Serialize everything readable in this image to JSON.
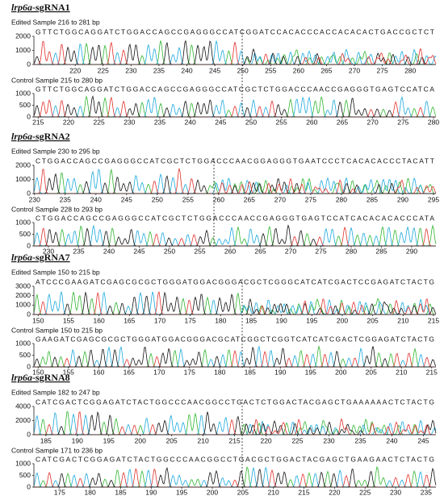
{
  "panels": [
    {
      "title": {
        "gene": "lrp6a",
        "suffix": "-sgRNA1"
      },
      "edited": {
        "label": "Edited Sample 216 to 281 bp",
        "sequence": "GTTCTGGCAGGATCTGGACCAGCCGAGGGCCATCGGATCCACACCCACCACACACTGACCGCTCT",
        "yticks": [
          0,
          1000,
          2000
        ],
        "xlim": [
          212.6,
          284.6
        ],
        "xticks": [
          220,
          225,
          230,
          235,
          240,
          245,
          250,
          255,
          260,
          265,
          270,
          275,
          280
        ]
      },
      "control": {
        "label": "Control Sample 215 to 280 bp",
        "sequence": "GTTCTGGCAGGATCTGGACCAGCCGAGGGCCATCGCTCTGGACCCAACCGAGGGTGAGTCCATCA",
        "yticks": [
          0,
          500,
          1000
        ],
        "xlim": [
          214.3,
          280.4
        ],
        "xticks": [
          215,
          220,
          225,
          230,
          235,
          240,
          245,
          250,
          255,
          260,
          265,
          270,
          275,
          280
        ]
      }
    },
    {
      "title": {
        "gene": "lrp6a",
        "suffix": "-sgRNA2"
      },
      "edited": {
        "label": "Edited Sample 230 to 295 bp",
        "sequence": "CTGGACCAGCCGAGGGCCATCGCTCTGGACCCAACGGAGGGTGAATCCCTCACACACCCTACATT",
        "yticks": [
          0,
          1000,
          2000
        ],
        "xlim": [
          229.9,
          295.4
        ],
        "xticks": [
          230,
          235,
          240,
          245,
          250,
          255,
          260,
          265,
          270,
          275,
          280,
          285,
          290,
          295
        ]
      },
      "control": {
        "label": "Control Sample 228 to 293 bp",
        "sequence": "CTGGACCAGCCGAGGGCCATCGCTCTGGACCCAACCGAGGGTGAGTCCATCACACACACCCATA",
        "yticks": [
          0,
          500,
          1000
        ],
        "xlim": [
          227.6,
          294.0
        ],
        "xticks": [
          230,
          235,
          240,
          245,
          250,
          255,
          260,
          265,
          270,
          275,
          280,
          285,
          290
        ]
      }
    },
    {
      "title": {
        "gene": "lrp6a",
        "suffix": "-sgRNA7"
      },
      "edited": {
        "label": "Edited Sample 150 to 215 bp",
        "sequence": "ATCCCGAAGATCGAGCGCGCTGGGATGGACGGGACGCTCGGGCATCATCGACTCCGAGATCTACTG",
        "yticks": [
          0,
          1000,
          2000,
          3000
        ],
        "xlim": [
          149.3,
          215.4
        ],
        "xticks": [
          150,
          155,
          160,
          165,
          170,
          175,
          180,
          185,
          190,
          195,
          200,
          205,
          210,
          215
        ]
      },
      "control": {
        "label": "Control Sample 150 to 215 bp",
        "sequence": "GAAGATCGAGCGCGCTGGGATGGACGGGACGCATCGGCTCGGTCATCATCGACTCGGAGATCTACTG",
        "yticks": [
          0,
          500,
          1000
        ],
        "xlim": [
          149.3,
          215.7
        ],
        "xticks": [
          150,
          155,
          160,
          165,
          170,
          175,
          180,
          185,
          190,
          195,
          200,
          205,
          210,
          215
        ]
      }
    },
    {
      "title": {
        "gene": "lrp6a",
        "suffix": "-sgRNA8"
      },
      "edited": {
        "label": "Edited Sample 182 to 247 bp",
        "sequence": "CATCGACTCGGAGATCTACTGGCCCAACGGCCTGACTCTGGACTACGAGCTGAAAAAACTCTACTG",
        "yticks": [
          0,
          2000,
          4000
        ],
        "xlim": [
          183.1,
          247.0
        ],
        "xticks": [
          185,
          190,
          195,
          200,
          205,
          210,
          215,
          220,
          225,
          230,
          235,
          240,
          245
        ]
      },
      "control": {
        "label": "Control Sample 171 to 236 bp",
        "sequence": "CATCGACTCGGAGATCTACTGGCCCAACGGCCTGACGCTGGACTACGAGCTGAAGAACTCTACTG",
        "yticks": [
          0,
          500,
          1000
        ],
        "xlim": [
          170.8,
          236.6
        ],
        "xticks": [
          175,
          180,
          185,
          190,
          195,
          200,
          205,
          210,
          215,
          220,
          225,
          230,
          235
        ]
      }
    }
  ]
}
